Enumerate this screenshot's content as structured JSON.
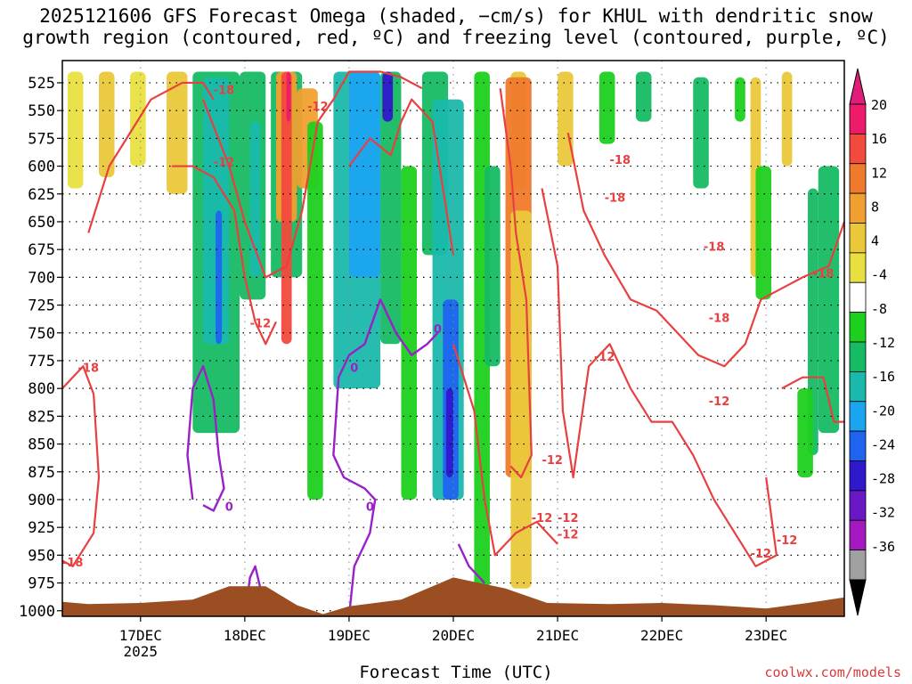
{
  "title_line1": "2025121606 GFS Forecast Omega (shaded, −cm/s) for KHUL with dendritic snow",
  "title_line2": "growth region (contoured, red, ºC) and freezing level (contoured, purple, ºC)",
  "credit": "coolwx.com/models",
  "chart_data": {
    "type": "heatmap",
    "xlabel": "Forecast Time (UTC)",
    "ylabel": "",
    "x_ticks": [
      "17DEC",
      "18DEC",
      "19DEC",
      "20DEC",
      "21DEC",
      "22DEC",
      "23DEC"
    ],
    "x_sublabel": "2025",
    "y_ticks": [
      525,
      550,
      575,
      600,
      625,
      650,
      675,
      700,
      725,
      750,
      775,
      800,
      825,
      850,
      875,
      900,
      925,
      950,
      975,
      1000
    ],
    "ylim": [
      505,
      1005
    ],
    "x_range_days": [
      16.25,
      23.75
    ],
    "colorbar": {
      "labels": [
        20,
        16,
        12,
        8,
        4,
        -4,
        -8,
        -12,
        -16,
        -20,
        -24,
        -28,
        -32,
        -36
      ],
      "colors": [
        "#ee1a6a",
        "#f24a3c",
        "#f07a2c",
        "#f0a030",
        "#eac83a",
        "#e8e040",
        "#ffffff",
        "#1ed01e",
        "#16bb64",
        "#1ab9ac",
        "#1ba4f0",
        "#1f64f0",
        "#3018cc",
        "#6a18c6",
        "#a418c0",
        "#a0a0a0"
      ],
      "top_arrow_color": "#e01e7a",
      "bottom_arrow_color": "#000000"
    },
    "contour_labels_red": [
      "-18",
      "-18",
      "-12",
      "-12",
      "-18",
      "-18",
      "-12",
      "-18",
      "-12",
      "-18",
      "-12",
      "-18",
      "-12",
      "-12",
      "-12",
      "-12",
      "-12",
      "-12",
      "-18"
    ],
    "contour_labels_purple": [
      "0",
      "0",
      "0",
      "0"
    ],
    "snow_region_color": "#e84040",
    "freezing_level_color": "#9a20c8",
    "terrain_color": "#9a4e22"
  }
}
